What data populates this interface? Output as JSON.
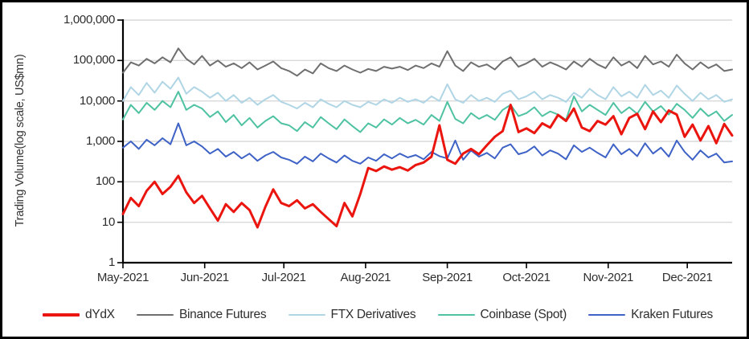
{
  "chart_data": {
    "type": "line",
    "title": "",
    "ylabel": "Trading Volume(log scale, US$mn)",
    "xlabel": "",
    "grid": "horizontal-log-decades",
    "legend_position": "bottom",
    "x_step_days": 3,
    "x_axis": {
      "start": "May-2021",
      "end": "Dec-2021",
      "total_days": 231,
      "tick_days": [
        0,
        31,
        61,
        92,
        123,
        153,
        184,
        214
      ],
      "tick_labels": [
        "May-2021",
        "Jun-2021",
        "Jul-2021",
        "Aug-2021",
        "Sep-2021",
        "Oct-2021",
        "Nov-2021",
        "Dec-2021"
      ]
    },
    "y_axis": {
      "scale": "log",
      "min": 1,
      "max": 1000000,
      "tick_values": [
        1,
        10,
        100,
        1000,
        10000,
        100000,
        1000000
      ],
      "tick_labels": [
        "1",
        "10",
        "100",
        "1,000",
        "10,000",
        "100,000",
        "1,000,000"
      ]
    },
    "axis_color": "#000000",
    "gridline_color": "#d9d9d9",
    "series": [
      {
        "name": "dYdX",
        "color": "#ea150e",
        "line_width": 3,
        "z": 5,
        "values": [
          16,
          40,
          25,
          60,
          100,
          50,
          75,
          140,
          55,
          30,
          45,
          22,
          11,
          28,
          18,
          30,
          20,
          7.5,
          24,
          65,
          30,
          25,
          35,
          22,
          28,
          18,
          12,
          8,
          30,
          14,
          50,
          220,
          185,
          240,
          200,
          230,
          190,
          260,
          300,
          420,
          2500,
          350,
          280,
          500,
          650,
          480,
          800,
          1300,
          1800,
          8000,
          1700,
          2100,
          1600,
          2800,
          2200,
          4500,
          3200,
          6500,
          2200,
          1800,
          3200,
          2600,
          4200,
          1500,
          3800,
          4800,
          2000,
          5500,
          3000,
          5800,
          4600,
          1300,
          2600,
          1050,
          2400,
          900,
          2700,
          1400
        ]
      },
      {
        "name": "Binance Futures",
        "color": "#6f6f6f",
        "line_width": 2,
        "z": 1,
        "values": [
          50000,
          90000,
          75000,
          110000,
          85000,
          120000,
          90000,
          200000,
          110000,
          80000,
          130000,
          75000,
          100000,
          70000,
          85000,
          65000,
          90000,
          60000,
          75000,
          95000,
          65000,
          55000,
          42000,
          60000,
          48000,
          85000,
          65000,
          55000,
          75000,
          60000,
          50000,
          62000,
          55000,
          70000,
          63000,
          70000,
          58000,
          75000,
          65000,
          85000,
          70000,
          170000,
          75000,
          55000,
          90000,
          70000,
          80000,
          60000,
          95000,
          120000,
          70000,
          85000,
          110000,
          70000,
          90000,
          75000,
          60000,
          95000,
          70000,
          110000,
          80000,
          65000,
          120000,
          75000,
          95000,
          65000,
          130000,
          80000,
          95000,
          70000,
          140000,
          85000,
          60000,
          90000,
          65000,
          80000,
          55000,
          60000
        ]
      },
      {
        "name": "FTX Derivatives",
        "color": "#b0d5e5",
        "line_width": 2,
        "z": 2,
        "values": [
          10000,
          22000,
          14000,
          28000,
          16000,
          30000,
          20000,
          38000,
          15000,
          22000,
          17000,
          12000,
          16000,
          10000,
          14000,
          9000,
          12000,
          8000,
          11000,
          14000,
          9500,
          8000,
          6500,
          9000,
          7000,
          11000,
          8500,
          7000,
          10000,
          8000,
          7000,
          9500,
          8000,
          11000,
          9000,
          12000,
          9500,
          11000,
          9000,
          13000,
          10000,
          26000,
          11000,
          9000,
          14000,
          10000,
          12000,
          9500,
          15000,
          18000,
          11000,
          13000,
          17000,
          11000,
          14000,
          12000,
          9500,
          16000,
          12000,
          20000,
          14000,
          11000,
          22000,
          13000,
          17000,
          12000,
          25000,
          14000,
          18000,
          12000,
          24000,
          15000,
          10000,
          16000,
          11000,
          14000,
          9500,
          11000
        ]
      },
      {
        "name": "Coinbase (Spot)",
        "color": "#4fc2a2",
        "line_width": 2,
        "z": 3,
        "values": [
          3500,
          8000,
          5000,
          9000,
          6000,
          10000,
          7000,
          17000,
          6000,
          8000,
          6500,
          4000,
          5500,
          3000,
          4500,
          2500,
          3800,
          2200,
          3200,
          4200,
          2800,
          2500,
          1800,
          3000,
          2200,
          4000,
          2800,
          2000,
          3500,
          2400,
          1700,
          2800,
          2200,
          3500,
          2600,
          3800,
          2800,
          3400,
          2600,
          4500,
          3200,
          9500,
          3600,
          2800,
          5000,
          3600,
          4500,
          3400,
          6000,
          8000,
          4200,
          5000,
          7000,
          4200,
          5500,
          4600,
          3400,
          13000,
          5500,
          8000,
          6000,
          4500,
          9000,
          5000,
          7000,
          4800,
          9500,
          5500,
          7500,
          4600,
          8500,
          6000,
          3800,
          6500,
          4200,
          5500,
          3200,
          4500
        ]
      },
      {
        "name": "Kraken Futures",
        "color": "#3e62c6",
        "line_width": 2,
        "z": 4,
        "values": [
          700,
          1000,
          650,
          1100,
          800,
          1200,
          850,
          2800,
          800,
          1000,
          750,
          500,
          650,
          420,
          550,
          380,
          500,
          330,
          450,
          550,
          400,
          350,
          280,
          420,
          320,
          500,
          380,
          300,
          450,
          330,
          280,
          400,
          330,
          480,
          380,
          500,
          400,
          460,
          360,
          550,
          430,
          380,
          1050,
          350,
          600,
          420,
          520,
          380,
          700,
          850,
          480,
          550,
          750,
          450,
          600,
          500,
          360,
          800,
          550,
          700,
          520,
          400,
          850,
          480,
          650,
          430,
          900,
          500,
          700,
          420,
          1050,
          550,
          350,
          600,
          400,
          500,
          300,
          320
        ]
      }
    ]
  }
}
